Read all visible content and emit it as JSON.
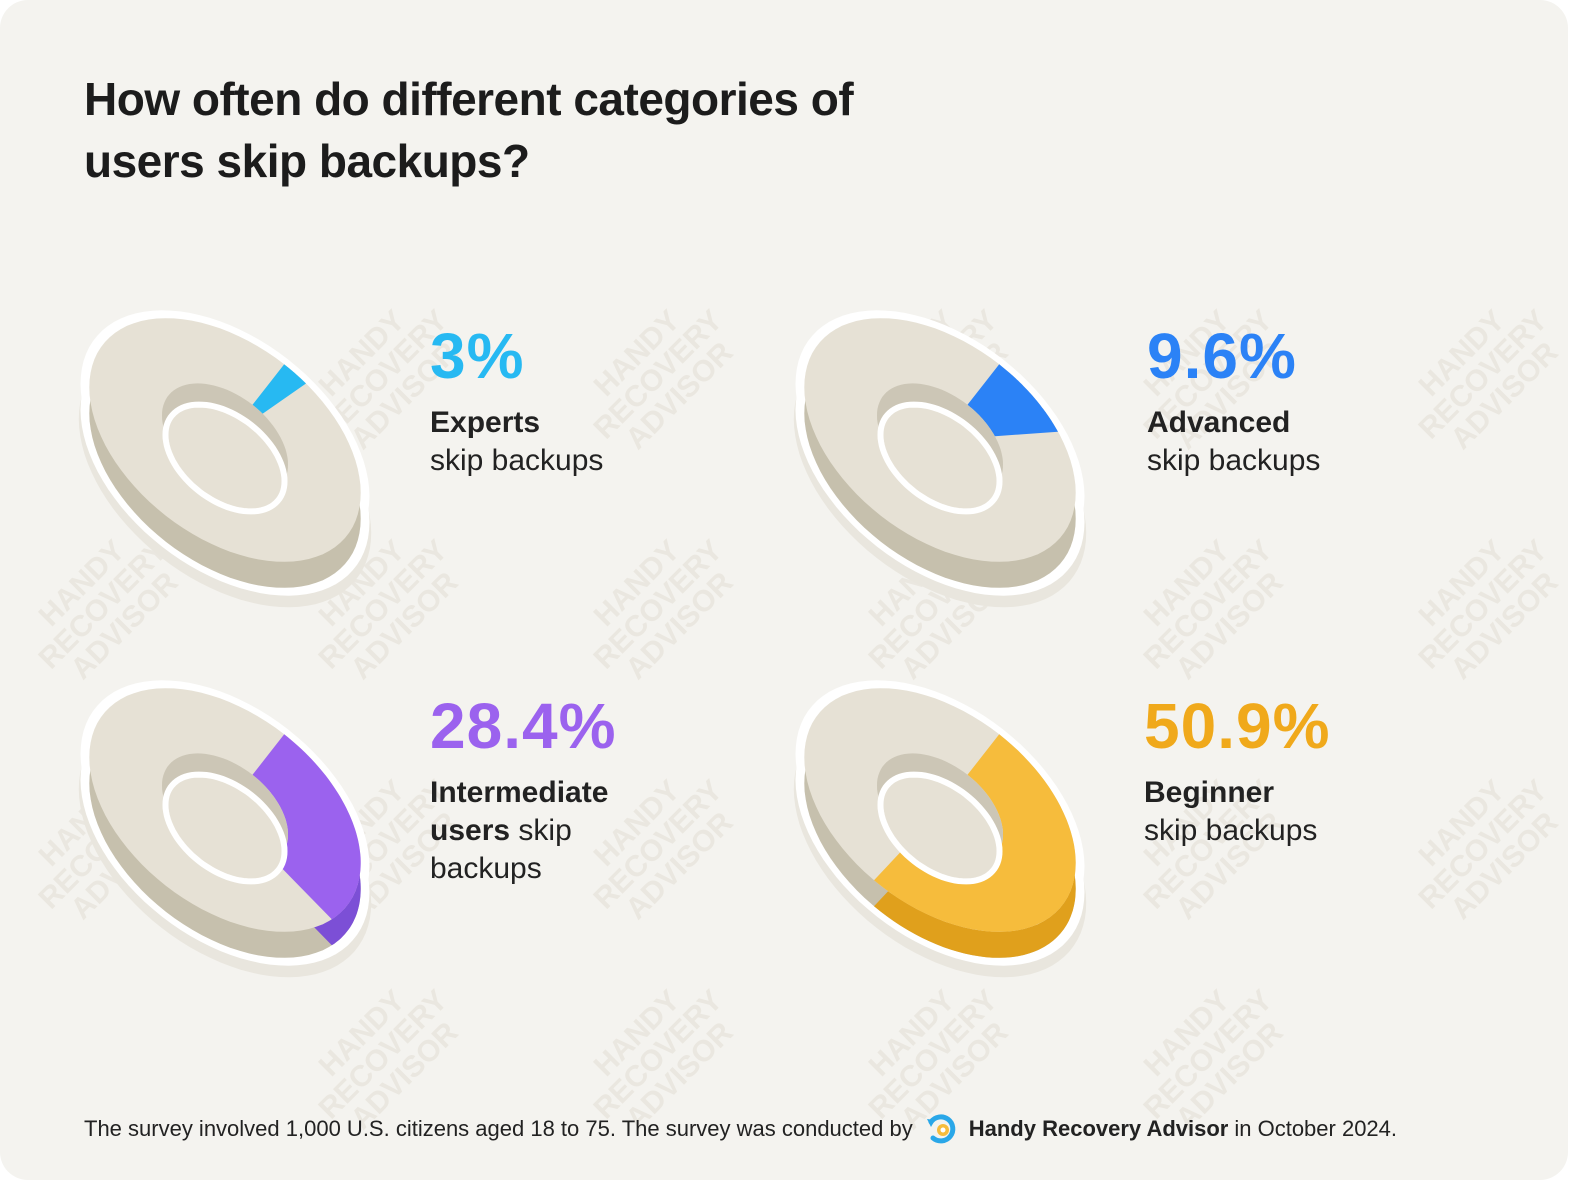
{
  "title": "How often do different categories of users skip backups?",
  "chart_data": [
    {
      "type": "pie",
      "name": "Experts",
      "value": 3,
      "value_label": "3%",
      "label_bold": "Experts",
      "label_rest": "skip backups",
      "color": "#27b9f2",
      "color_dark": "#1a9fd6"
    },
    {
      "type": "pie",
      "name": "Advanced",
      "value": 9.6,
      "value_label": "9.6%",
      "label_bold": "Advanced",
      "label_rest": "skip backups",
      "color": "#2b82f6",
      "color_dark": "#1f66d6"
    },
    {
      "type": "pie",
      "name": "Intermediate users",
      "value": 28.4,
      "value_label": "28.4%",
      "label_bold": "Intermediate users",
      "label_rest": "skip backups",
      "color": "#9b62ee",
      "color_dark": "#7c4fd6"
    },
    {
      "type": "pie",
      "name": "Beginner",
      "value": 50.9,
      "value_label": "50.9%",
      "label_bold": "Beginner",
      "label_rest": "skip backups",
      "color": "#f6bc3c",
      "color_dark": "#e0a01c"
    }
  ],
  "donut_colors": {
    "top_base": "#e6e1d5",
    "inner_wall": "#ccc6b6",
    "side": "#c6c0ad",
    "outline": "#ffffff"
  },
  "footer": {
    "text_before": "The survey involved 1,000 U.S. citizens aged 18 to 75. The survey was conducted by",
    "brand": "Handy Recovery Advisor",
    "text_after": "in October 2024."
  },
  "watermark": {
    "lines": [
      "HANDY",
      "RECOVERY",
      "ADVISOR"
    ]
  }
}
